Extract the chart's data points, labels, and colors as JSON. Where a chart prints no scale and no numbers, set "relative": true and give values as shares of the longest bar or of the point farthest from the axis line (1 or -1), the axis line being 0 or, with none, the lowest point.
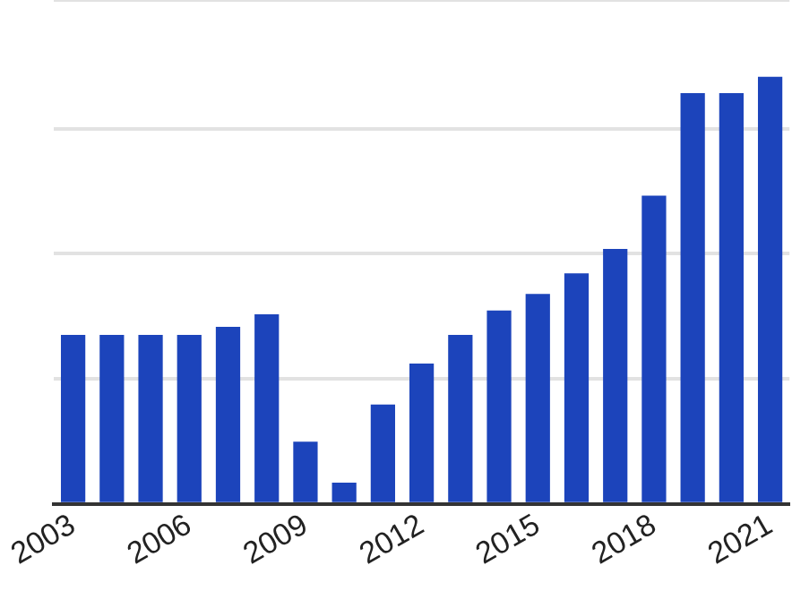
{
  "chart_data": {
    "type": "bar",
    "relative": true,
    "grid": "y",
    "legend": false,
    "categories": [
      "2003",
      null,
      null,
      "2006",
      null,
      null,
      "2009",
      null,
      null,
      "2012",
      null,
      null,
      "2015",
      null,
      null,
      "2018",
      null,
      null,
      "2021"
    ],
    "series": [
      {
        "color": "#1c44bb",
        "values": [
          0.396,
          0.396,
          0.396,
          0.396,
          0.415,
          0.444,
          0.146,
          0.05,
          0.233,
          0.329,
          0.396,
          0.453,
          0.492,
          0.54,
          0.597,
          0.722,
          0.962,
          0.962,
          1
        ]
      }
    ]
  }
}
